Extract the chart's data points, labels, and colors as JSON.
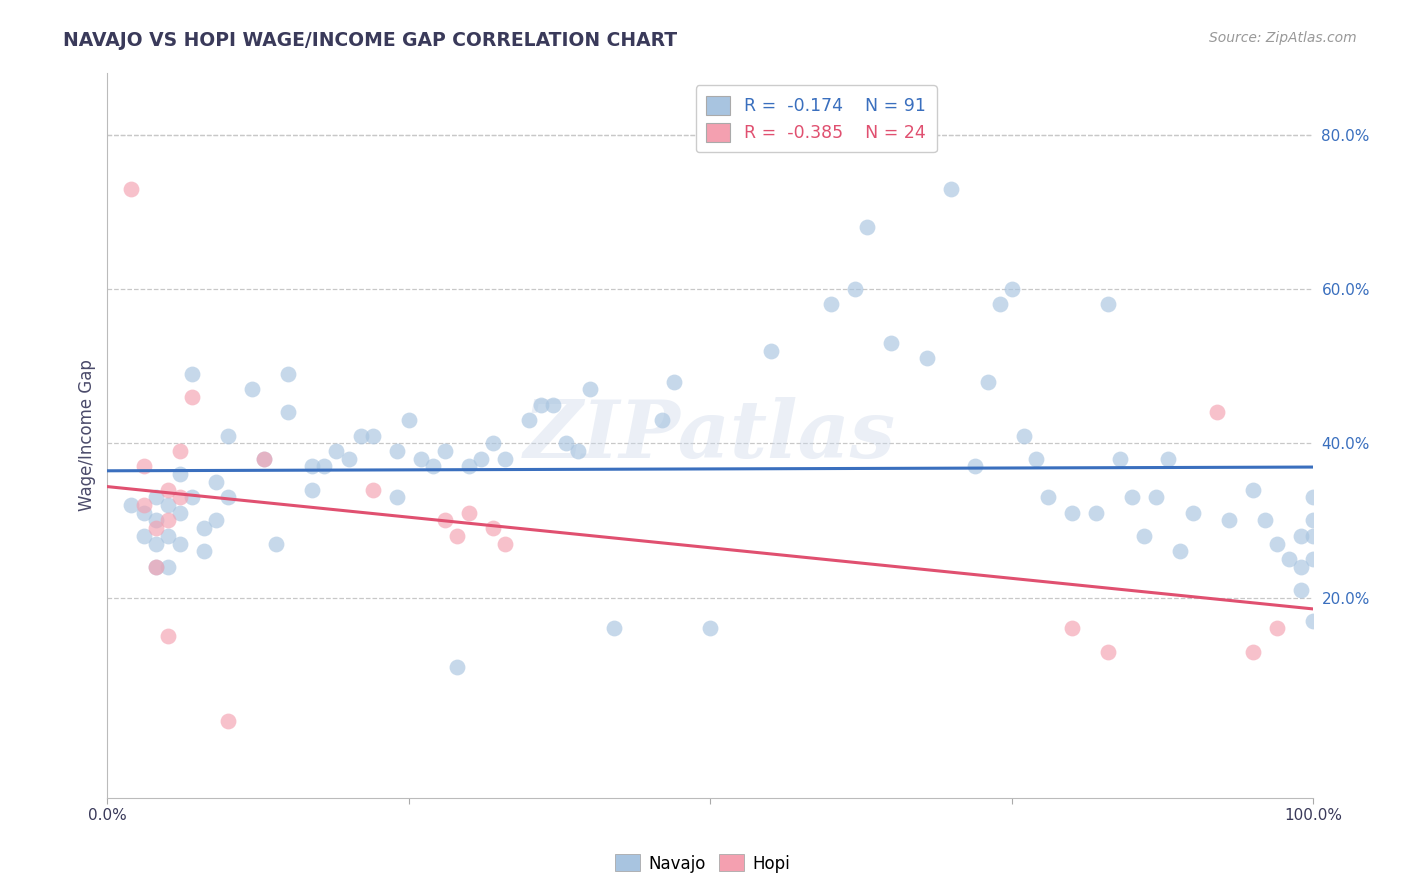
{
  "title": "NAVAJO VS HOPI WAGE/INCOME GAP CORRELATION CHART",
  "source": "Source: ZipAtlas.com",
  "ylabel": "Wage/Income Gap",
  "xlim": [
    0.0,
    1.0
  ],
  "ylim": [
    -0.06,
    0.88
  ],
  "xticks": [
    0.0,
    0.25,
    0.5,
    0.75,
    1.0
  ],
  "xtick_labels": [
    "0.0%",
    "",
    "",
    "",
    "100.0%"
  ],
  "ytick_labels": [
    "20.0%",
    "40.0%",
    "60.0%",
    "80.0%"
  ],
  "yticks": [
    0.2,
    0.4,
    0.6,
    0.8
  ],
  "navajo_R": -0.174,
  "navajo_N": 91,
  "hopi_R": -0.385,
  "hopi_N": 24,
  "navajo_color": "#a8c4e0",
  "hopi_color": "#f4a0b0",
  "navajo_line_color": "#3a6fbe",
  "hopi_line_color": "#e05070",
  "background_color": "#ffffff",
  "grid_color": "#c8c8c8",
  "title_color": "#3a3a5a",
  "watermark": "ZIPatlas",
  "navajo_x": [
    0.02,
    0.03,
    0.03,
    0.04,
    0.04,
    0.04,
    0.04,
    0.05,
    0.05,
    0.05,
    0.06,
    0.06,
    0.06,
    0.07,
    0.07,
    0.08,
    0.08,
    0.09,
    0.09,
    0.1,
    0.1,
    0.12,
    0.13,
    0.14,
    0.15,
    0.15,
    0.17,
    0.17,
    0.18,
    0.19,
    0.2,
    0.21,
    0.22,
    0.24,
    0.24,
    0.25,
    0.26,
    0.27,
    0.28,
    0.29,
    0.3,
    0.31,
    0.32,
    0.33,
    0.35,
    0.36,
    0.37,
    0.38,
    0.39,
    0.4,
    0.42,
    0.46,
    0.47,
    0.5,
    0.55,
    0.6,
    0.62,
    0.63,
    0.65,
    0.68,
    0.7,
    0.72,
    0.73,
    0.74,
    0.75,
    0.76,
    0.77,
    0.78,
    0.8,
    0.82,
    0.83,
    0.84,
    0.85,
    0.86,
    0.87,
    0.88,
    0.89,
    0.9,
    0.93,
    0.95,
    0.96,
    0.97,
    0.98,
    0.99,
    0.99,
    0.99,
    1.0,
    1.0,
    1.0,
    1.0,
    1.0
  ],
  "navajo_y": [
    0.32,
    0.31,
    0.28,
    0.33,
    0.3,
    0.27,
    0.24,
    0.32,
    0.28,
    0.24,
    0.36,
    0.31,
    0.27,
    0.49,
    0.33,
    0.29,
    0.26,
    0.35,
    0.3,
    0.41,
    0.33,
    0.47,
    0.38,
    0.27,
    0.49,
    0.44,
    0.37,
    0.34,
    0.37,
    0.39,
    0.38,
    0.41,
    0.41,
    0.39,
    0.33,
    0.43,
    0.38,
    0.37,
    0.39,
    0.11,
    0.37,
    0.38,
    0.4,
    0.38,
    0.43,
    0.45,
    0.45,
    0.4,
    0.39,
    0.47,
    0.16,
    0.43,
    0.48,
    0.16,
    0.52,
    0.58,
    0.6,
    0.68,
    0.53,
    0.51,
    0.73,
    0.37,
    0.48,
    0.58,
    0.6,
    0.41,
    0.38,
    0.33,
    0.31,
    0.31,
    0.58,
    0.38,
    0.33,
    0.28,
    0.33,
    0.38,
    0.26,
    0.31,
    0.3,
    0.34,
    0.3,
    0.27,
    0.25,
    0.28,
    0.24,
    0.21,
    0.3,
    0.28,
    0.17,
    0.25,
    0.33
  ],
  "hopi_x": [
    0.02,
    0.03,
    0.03,
    0.04,
    0.04,
    0.05,
    0.05,
    0.05,
    0.06,
    0.06,
    0.07,
    0.1,
    0.13,
    0.22,
    0.28,
    0.29,
    0.3,
    0.32,
    0.33,
    0.8,
    0.83,
    0.92,
    0.95,
    0.97
  ],
  "hopi_y": [
    0.73,
    0.37,
    0.32,
    0.29,
    0.24,
    0.34,
    0.3,
    0.15,
    0.39,
    0.33,
    0.46,
    0.04,
    0.38,
    0.34,
    0.3,
    0.28,
    0.31,
    0.29,
    0.27,
    0.16,
    0.13,
    0.44,
    0.13,
    0.16
  ]
}
